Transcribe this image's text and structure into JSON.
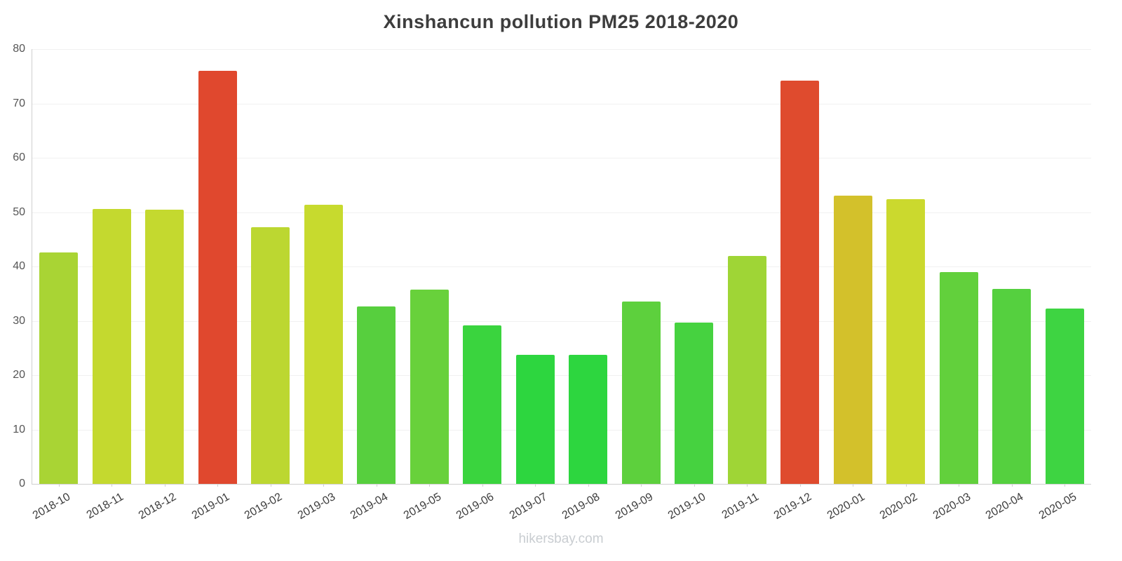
{
  "chart_data": {
    "type": "bar",
    "title": "Xinshancun pollution PM25 2018-2020",
    "categories": [
      "2018-10",
      "2018-11",
      "2018-12",
      "2019-01",
      "2019-02",
      "2019-03",
      "2019-04",
      "2019-05",
      "2019-06",
      "2019-07",
      "2019-08",
      "2019-09",
      "2019-10",
      "2019-11",
      "2019-12",
      "2020-01",
      "2020-02",
      "2020-03",
      "2020-04",
      "2020-05"
    ],
    "values": [
      42.6,
      50.6,
      50.4,
      76.0,
      47.2,
      51.3,
      32.6,
      35.8,
      29.1,
      23.8,
      23.7,
      33.5,
      29.7,
      41.9,
      74.2,
      53.0,
      52.4,
      39.0,
      35.9,
      32.3
    ],
    "colors": [
      "#a9d434",
      "#c4d92f",
      "#c4d92f",
      "#e0482e",
      "#bcd731",
      "#c7da2e",
      "#57cf3e",
      "#68d13b",
      "#3ad43e",
      "#2dd63f",
      "#2dd63f",
      "#5dd03d",
      "#46d240",
      "#9fd536",
      "#df4b2e",
      "#d3c12b",
      "#cbd92e",
      "#62d03c",
      "#55d03f",
      "#3ed442"
    ],
    "xlabel": "",
    "ylabel": "",
    "ylim": [
      0,
      80
    ],
    "yticks": [
      0,
      10,
      20,
      30,
      40,
      50,
      60,
      70,
      80
    ],
    "grid": true,
    "legend_position": "none"
  },
  "footer": {
    "watermark": "hikersbay.com"
  },
  "style": {
    "axis_color": "#cfcfcf",
    "grid_color": "#f1f1f1",
    "tick_label_color": "#555555",
    "x_label_color": "#3c3c3c",
    "title_color": "#3d3d3d",
    "watermark_color": "#c9cdd1",
    "background": "#ffffff"
  }
}
